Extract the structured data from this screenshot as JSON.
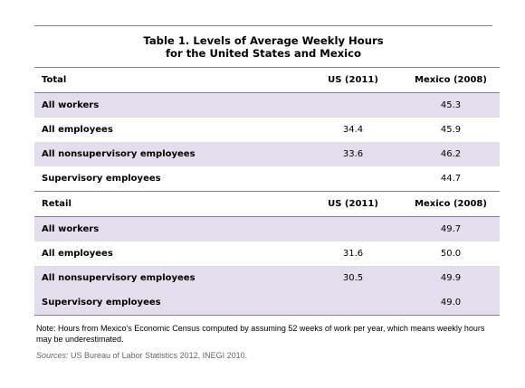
{
  "title": {
    "line1": "Table 1. Levels of Average Weekly Hours",
    "line2": "for the United States and Mexico"
  },
  "sections": [
    {
      "header": {
        "label": "Total",
        "col2": "US (2011)",
        "col3": "Mexico (2008)"
      },
      "rows": [
        {
          "label": "All workers",
          "us": "",
          "mexico": "45.3"
        },
        {
          "label": "All employees",
          "us": "34.4",
          "mexico": "45.9"
        },
        {
          "label": "All nonsupervisory employees",
          "us": "33.6",
          "mexico": "46.2"
        },
        {
          "label": "Supervisory employees",
          "us": "",
          "mexico": "44.7"
        }
      ]
    },
    {
      "header": {
        "label": "Retail",
        "col2": "US (2011)",
        "col3": "Mexico (2008)"
      },
      "rows": [
        {
          "label": "All workers",
          "us": "",
          "mexico": "49.7"
        },
        {
          "label": "All employees",
          "us": "31.6",
          "mexico": "50.0"
        },
        {
          "label": "All nonsupervisory employees",
          "us": "30.5",
          "mexico": "49.9"
        },
        {
          "label": "Supervisory employees",
          "us": "",
          "mexico": "49.0"
        }
      ]
    }
  ],
  "note": "Note: Hours from Mexico's Economic Census computed by assuming 52 weeks of work per year, which means weekly hours may be underestimated.",
  "sources": {
    "prefix": "Sources:",
    "text": " US Bureau of Labor Statistics 2012, INEGI 2010."
  }
}
